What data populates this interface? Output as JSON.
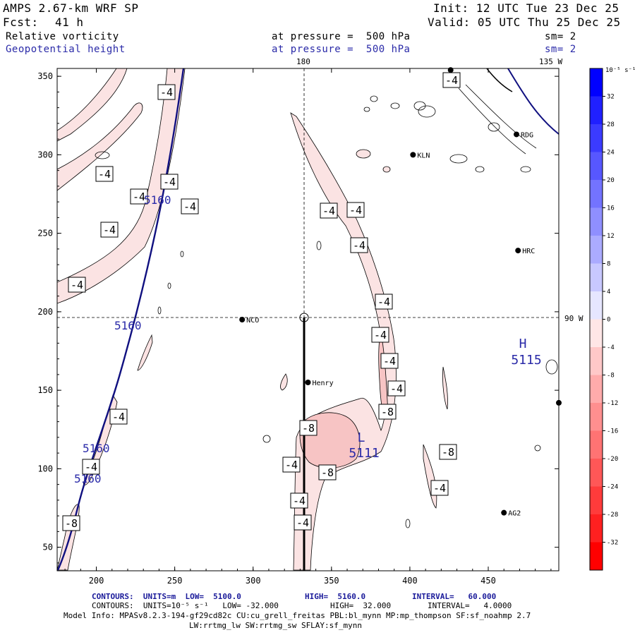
{
  "header": {
    "model": "AMPS 2.67-km WRF SP",
    "init": "Init: 12 UTC Tue 23 Dec 25",
    "fcst_label": "Fcst:",
    "fcst_value": "41 h",
    "valid": "Valid: 05 UTC Thu 25 Dec 25"
  },
  "fields": [
    {
      "name": "Relative vorticity",
      "level": "at pressure =  500 hPa",
      "sm": "sm= 2"
    },
    {
      "name": "Geopotential height",
      "level": "at pressure =  500 hPa",
      "sm": "sm= 2"
    }
  ],
  "map_labels": {
    "top_lon_180": "180",
    "top_lon_135w": "135 W",
    "right_lat_90w": "90 W",
    "high_letter": "H",
    "high_value": "5115",
    "low_letter": "L",
    "low_value": "5111"
  },
  "stations": [
    {
      "name": "NCO",
      "x": 293,
      "y": 195
    },
    {
      "name": "Henry",
      "x": 335,
      "y": 155
    },
    {
      "name": "KLN",
      "x": 402,
      "y": 300
    },
    {
      "name": "RDG",
      "x": 468,
      "y": 313
    },
    {
      "name": "HRC",
      "x": 469,
      "y": 239
    },
    {
      "name": "AG2",
      "x": 460,
      "y": 72
    },
    {
      "name": "",
      "x": 426,
      "y": 354
    },
    {
      "name": "",
      "x": 495,
      "y": 142
    }
  ],
  "height_labels": [
    "5160",
    "5160",
    "5160",
    "5160"
  ],
  "vort_labels": [
    "-4",
    "-4",
    "-4",
    "-4",
    "-4",
    "-4",
    "-4",
    "-4",
    "-4",
    "-4",
    "-4",
    "-4",
    "-4",
    "-4",
    "-8",
    "-4",
    "-8",
    "-4",
    "-8",
    "-8",
    "-4",
    "-4",
    "-4",
    "-8",
    "-4",
    "-4",
    "-4",
    "-4",
    "-4"
  ],
  "axes": {
    "x_ticks": [
      "200",
      "250",
      "300",
      "350",
      "400",
      "450"
    ],
    "y_ticks": [
      "350",
      "300",
      "250",
      "200",
      "150",
      "100",
      "50"
    ]
  },
  "colorbar": {
    "unit": "10⁻⁵ s⁻¹",
    "tick_labels": [
      "32",
      "28",
      "24",
      "20",
      "16",
      "12",
      "8",
      "4",
      "0",
      "-4",
      "-8",
      "-12",
      "-16",
      "-20",
      "-24",
      "-28",
      "-32"
    ],
    "colors": [
      "#0000ff",
      "#2020ff",
      "#3b3bff",
      "#5757ff",
      "#7373ff",
      "#8f8fff",
      "#ababff",
      "#c8c8ff",
      "#e6e6ff",
      "#ffe6e6",
      "#ffc8c8",
      "#ffabab",
      "#ff8f8f",
      "#ff7373",
      "#ff5757",
      "#ff3b3b",
      "#ff2020",
      "#ff0000"
    ]
  },
  "footer": {
    "line1_prefix": "CONTOURS:  UNITS=m  LOW=  5100.0",
    "line1_high": "HIGH=  5160.0",
    "line1_interval": "INTERVAL=   60.000",
    "line2_prefix": "CONTOURS:  UNITS=10⁻⁵ s⁻¹   LOW= -32.000",
    "line2_high": "HIGH=  32.000",
    "line2_interval": "INTERVAL=   4.0000",
    "line3": "Model Info: MPASv8.2.3-194-gf29cd82c CU:cu_grell_freitas PBL:bl_mynn MP:mp_thompson SF:sf_noahmp 2.7",
    "line4": "LW:rrtmg_lw SW:rrtmg_sw SFLAY:sf_mynn"
  },
  "colors": {
    "height_contour": "#101080",
    "label_blue": "#2a2aa8",
    "vort_fill_light": "#fbe3e3",
    "vort_fill_mid": "#f7c4c4"
  }
}
